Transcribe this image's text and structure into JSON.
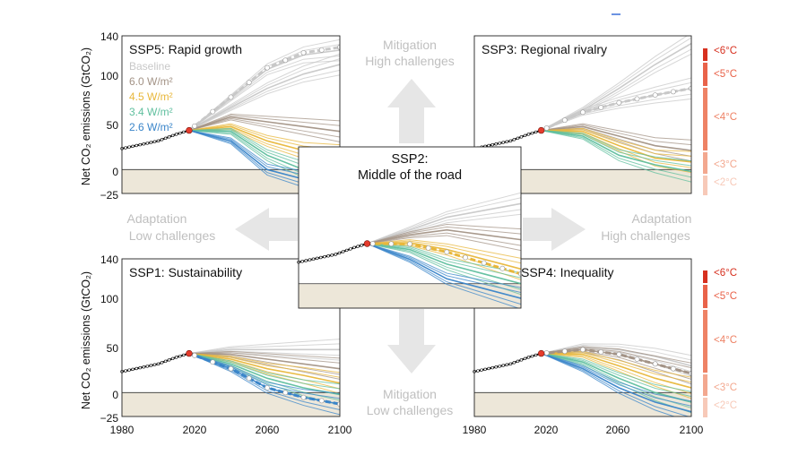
{
  "ylabel": "Net CO₂ emissions (GtCO₂)",
  "y_ticks": [
    "140",
    "100",
    "50",
    "0",
    "−25"
  ],
  "x_ticks": [
    "1980",
    "2020",
    "2060",
    "2100"
  ],
  "legend": [
    {
      "label": "Baseline",
      "color": "#c8c8c8"
    },
    {
      "label": "6.0 W/m²",
      "color": "#a39386"
    },
    {
      "label": "4.5 W/m²",
      "color": "#e8b73b"
    },
    {
      "label": "3.4 W/m²",
      "color": "#5fbf9e"
    },
    {
      "label": "2.6 W/m²",
      "color": "#3a85c9"
    }
  ],
  "challenges": {
    "mitigation_high": [
      "Mitigation",
      "High challenges"
    ],
    "mitigation_low": [
      "Mitigation",
      "Low challenges"
    ],
    "adaptation_low": [
      "Adaptation",
      "Low challenges"
    ],
    "adaptation_high": [
      "Adaptation",
      "High challenges"
    ]
  },
  "temperature_labels": [
    "<6°C",
    "<5°C",
    "<4°C",
    "<3°C",
    "<2°C"
  ],
  "temperature_colors": [
    "#d7301f",
    "#e9634a",
    "#ee8265",
    "#f3a88f",
    "#f7c9b8"
  ],
  "chart_data": [
    {
      "type": "line",
      "id": "ssp5",
      "title": "SSP5: Rapid growth",
      "xlim": [
        1980,
        2100
      ],
      "ylim": [
        -25,
        140
      ],
      "history": {
        "x": [
          1980,
          1990,
          2000,
          2010,
          2017
        ],
        "y": [
          22,
          26,
          30,
          37,
          41
        ]
      },
      "marker": {
        "x": 2100,
        "y": 128
      },
      "series": [
        {
          "name": "Baseline",
          "x": [
            2017,
            2040,
            2060,
            2080,
            2100
          ],
          "y": [
            41,
            75,
            105,
            120,
            125
          ]
        },
        {
          "name": "Baseline",
          "x": [
            2017,
            2040,
            2060,
            2080,
            2100
          ],
          "y": [
            41,
            65,
            85,
            100,
            110
          ]
        },
        {
          "name": "6.0 W/m²",
          "x": [
            2017,
            2040,
            2060,
            2080,
            2100
          ],
          "y": [
            41,
            55,
            50,
            45,
            40
          ]
        },
        {
          "name": "4.5 W/m²",
          "x": [
            2017,
            2040,
            2060,
            2080,
            2100
          ],
          "y": [
            41,
            45,
            30,
            20,
            15
          ]
        },
        {
          "name": "3.4 W/m²",
          "x": [
            2017,
            2040,
            2060,
            2080,
            2100
          ],
          "y": [
            41,
            40,
            15,
            0,
            -8
          ]
        },
        {
          "name": "2.6 W/m²",
          "x": [
            2017,
            2040,
            2060,
            2080,
            2100
          ],
          "y": [
            41,
            30,
            0,
            -10,
            -18
          ]
        }
      ]
    },
    {
      "type": "line",
      "id": "ssp3",
      "title": "SSP3: Regional rivalry",
      "xlim": [
        1980,
        2100
      ],
      "ylim": [
        -25,
        140
      ],
      "history": {
        "x": [
          1980,
          1990,
          2000,
          2010,
          2017
        ],
        "y": [
          22,
          26,
          30,
          37,
          41
        ]
      },
      "marker": {
        "x": 2100,
        "y": 85
      },
      "series": [
        {
          "name": "Baseline",
          "x": [
            2017,
            2040,
            2060,
            2080,
            2100
          ],
          "y": [
            41,
            60,
            70,
            78,
            85
          ]
        },
        {
          "name": "Baseline",
          "x": [
            2017,
            2040,
            2060,
            2080,
            2100
          ],
          "y": [
            41,
            62,
            85,
            110,
            132
          ]
        },
        {
          "name": "6.0 W/m²",
          "x": [
            2017,
            2040,
            2060,
            2080,
            2100
          ],
          "y": [
            41,
            45,
            35,
            25,
            20
          ]
        },
        {
          "name": "4.5 W/m²",
          "x": [
            2017,
            2040,
            2060,
            2080,
            2100
          ],
          "y": [
            41,
            40,
            25,
            12,
            8
          ]
        },
        {
          "name": "3.4 W/m²",
          "x": [
            2017,
            2040,
            2060,
            2080,
            2100
          ],
          "y": [
            41,
            35,
            15,
            5,
            -2
          ]
        }
      ]
    },
    {
      "type": "line",
      "id": "ssp2",
      "title": "SSP2: Middle of the road",
      "xlim": [
        1980,
        2100
      ],
      "ylim": [
        -25,
        140
      ],
      "history": {
        "x": [
          1980,
          1990,
          2000,
          2010,
          2017
        ],
        "y": [
          22,
          26,
          30,
          37,
          41
        ]
      },
      "marker": {
        "x": 2100,
        "y": 10
      },
      "series": [
        {
          "name": "Baseline",
          "x": [
            2017,
            2040,
            2060,
            2080,
            2100
          ],
          "y": [
            41,
            55,
            68,
            75,
            82
          ]
        },
        {
          "name": "6.0 W/m²",
          "x": [
            2017,
            2040,
            2060,
            2080,
            2100
          ],
          "y": [
            41,
            50,
            55,
            50,
            45
          ]
        },
        {
          "name": "4.5 W/m²",
          "x": [
            2017,
            2040,
            2060,
            2080,
            2100
          ],
          "y": [
            41,
            42,
            35,
            25,
            15
          ]
        },
        {
          "name": "3.4 W/m²",
          "x": [
            2017,
            2040,
            2060,
            2080,
            2100
          ],
          "y": [
            41,
            35,
            20,
            10,
            0
          ]
        },
        {
          "name": "2.6 W/m²",
          "x": [
            2017,
            2040,
            2060,
            2080,
            2100
          ],
          "y": [
            41,
            25,
            5,
            -5,
            -15
          ]
        }
      ]
    },
    {
      "type": "line",
      "id": "ssp1",
      "title": "SSP1: Sustainability",
      "xlim": [
        1980,
        2100
      ],
      "ylim": [
        -25,
        140
      ],
      "history": {
        "x": [
          1980,
          1990,
          2000,
          2010,
          2017
        ],
        "y": [
          22,
          26,
          30,
          37,
          41
        ]
      },
      "marker": {
        "x": 2100,
        "y": -12
      },
      "series": [
        {
          "name": "Baseline",
          "x": [
            2017,
            2040,
            2060,
            2080,
            2100
          ],
          "y": [
            41,
            45,
            45,
            45,
            45
          ]
        },
        {
          "name": "6.0 W/m²",
          "x": [
            2017,
            2040,
            2060,
            2080,
            2100
          ],
          "y": [
            41,
            40,
            35,
            30,
            25
          ]
        },
        {
          "name": "4.5 W/m²",
          "x": [
            2017,
            2040,
            2060,
            2080,
            2100
          ],
          "y": [
            41,
            35,
            25,
            18,
            10
          ]
        },
        {
          "name": "3.4 W/m²",
          "x": [
            2017,
            2040,
            2060,
            2080,
            2100
          ],
          "y": [
            41,
            30,
            15,
            5,
            -2
          ]
        },
        {
          "name": "2.6 W/m²",
          "x": [
            2017,
            2040,
            2060,
            2080,
            2100
          ],
          "y": [
            41,
            25,
            5,
            -5,
            -12
          ]
        }
      ]
    },
    {
      "type": "line",
      "id": "ssp4",
      "title": "SSP4: Inequality",
      "xlim": [
        1980,
        2100
      ],
      "ylim": [
        -25,
        140
      ],
      "history": {
        "x": [
          1980,
          1990,
          2000,
          2010,
          2017
        ],
        "y": [
          22,
          26,
          30,
          37,
          41
        ]
      },
      "marker": {
        "x": 2100,
        "y": 20
      },
      "series": [
        {
          "name": "Baseline",
          "x": [
            2017,
            2040,
            2060,
            2080,
            2100
          ],
          "y": [
            41,
            48,
            45,
            38,
            28
          ]
        },
        {
          "name": "6.0 W/m²",
          "x": [
            2017,
            2040,
            2060,
            2080,
            2100
          ],
          "y": [
            41,
            45,
            40,
            30,
            20
          ]
        },
        {
          "name": "4.5 W/m²",
          "x": [
            2017,
            2040,
            2060,
            2080,
            2100
          ],
          "y": [
            41,
            40,
            28,
            15,
            5
          ]
        },
        {
          "name": "3.4 W/m²",
          "x": [
            2017,
            2040,
            2060,
            2080,
            2100
          ],
          "y": [
            41,
            32,
            15,
            0,
            -10
          ]
        },
        {
          "name": "2.6 W/m²",
          "x": [
            2017,
            2040,
            2060,
            2080,
            2100
          ],
          "y": [
            41,
            25,
            5,
            -10,
            -20
          ]
        }
      ]
    }
  ]
}
